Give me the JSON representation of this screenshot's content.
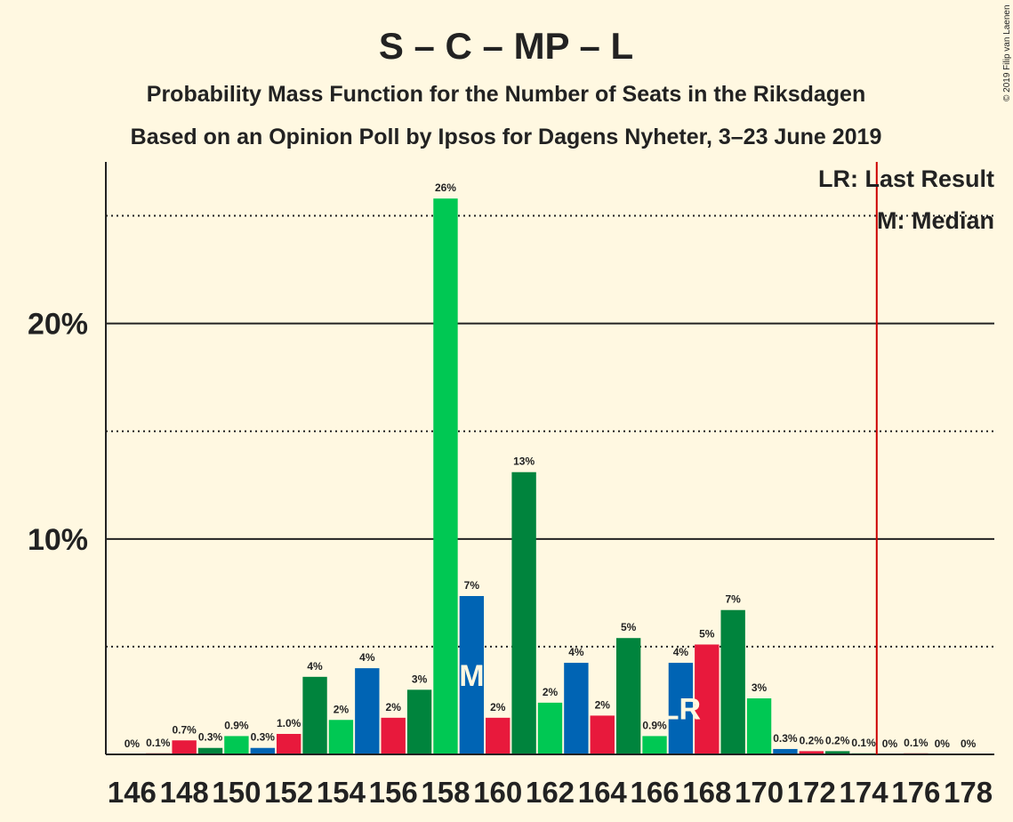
{
  "chart_data": {
    "type": "bar",
    "title": "S – C – MP – L",
    "subtitle_1": "Probability Mass Function for the Number of Seats in the Riksdagen",
    "subtitle_2": "Based on an Opinion Poll by Ipsos for Dagens Nyheter, 3–23 June 2019",
    "copyright": "© 2019 Filip van Laenen",
    "legend": {
      "last_result": "LR: Last Result",
      "median": "M: Median",
      "placement": "top-right"
    },
    "y_ticks": [
      {
        "value": 10,
        "label": "10%"
      },
      {
        "value": 20,
        "label": "20%"
      }
    ],
    "y_dotted_lines": [
      5,
      15,
      25
    ],
    "ylim": [
      0,
      27.5
    ],
    "xlim": [
      145,
      179
    ],
    "x_tick_labels": [
      "146",
      "148",
      "150",
      "152",
      "154",
      "156",
      "158",
      "160",
      "162",
      "164",
      "166",
      "168",
      "170",
      "172",
      "174",
      "176",
      "178"
    ],
    "majority_line_x": 175,
    "colors": {
      "red": "#e8193c",
      "dark_green": "#00843d",
      "green": "#00c853",
      "blue": "#0064b4",
      "majority": "#cc0000"
    },
    "bars": [
      {
        "seats": 146,
        "value": 0.0,
        "label": "0%",
        "color": "red"
      },
      {
        "seats": 147,
        "value": 0.05,
        "label": "0.1%",
        "color": "red"
      },
      {
        "seats": 148,
        "value": 0.65,
        "label": "0.7%",
        "color": "red"
      },
      {
        "seats": 149,
        "value": 0.3,
        "label": "0.3%",
        "color": "dark_green"
      },
      {
        "seats": 150,
        "value": 0.85,
        "label": "0.9%",
        "color": "green"
      },
      {
        "seats": 151,
        "value": 0.3,
        "label": "0.3%",
        "color": "blue"
      },
      {
        "seats": 152,
        "value": 0.95,
        "label": "1.0%",
        "color": "red"
      },
      {
        "seats": 153,
        "value": 3.6,
        "label": "4%",
        "color": "dark_green"
      },
      {
        "seats": 154,
        "value": 1.6,
        "label": "2%",
        "color": "green"
      },
      {
        "seats": 155,
        "value": 4.0,
        "label": "4%",
        "color": "blue"
      },
      {
        "seats": 156,
        "value": 1.7,
        "label": "2%",
        "color": "red"
      },
      {
        "seats": 157,
        "value": 3.0,
        "label": "3%",
        "color": "dark_green"
      },
      {
        "seats": 158,
        "value": 25.8,
        "label": "26%",
        "color": "green"
      },
      {
        "seats": 159,
        "value": 7.35,
        "label": "7%",
        "color": "blue",
        "marker": "M"
      },
      {
        "seats": 160,
        "value": 1.7,
        "label": "2%",
        "color": "red"
      },
      {
        "seats": 161,
        "value": 13.1,
        "label": "13%",
        "color": "dark_green"
      },
      {
        "seats": 162,
        "value": 2.4,
        "label": "2%",
        "color": "green"
      },
      {
        "seats": 163,
        "value": 4.25,
        "label": "4%",
        "color": "blue"
      },
      {
        "seats": 164,
        "value": 1.8,
        "label": "2%",
        "color": "red"
      },
      {
        "seats": 165,
        "value": 5.4,
        "label": "5%",
        "color": "dark_green"
      },
      {
        "seats": 166,
        "value": 0.85,
        "label": "0.9%",
        "color": "green"
      },
      {
        "seats": 167,
        "value": 4.25,
        "label": "4%",
        "color": "blue",
        "marker": "LR"
      },
      {
        "seats": 168,
        "value": 5.1,
        "label": "5%",
        "color": "red"
      },
      {
        "seats": 169,
        "value": 6.7,
        "label": "7%",
        "color": "dark_green"
      },
      {
        "seats": 170,
        "value": 2.6,
        "label": "3%",
        "color": "green"
      },
      {
        "seats": 171,
        "value": 0.25,
        "label": "0.3%",
        "color": "blue"
      },
      {
        "seats": 172,
        "value": 0.15,
        "label": "0.2%",
        "color": "red"
      },
      {
        "seats": 173,
        "value": 0.15,
        "label": "0.2%",
        "color": "dark_green"
      },
      {
        "seats": 174,
        "value": 0.05,
        "label": "0.1%",
        "color": "green"
      },
      {
        "seats": 175,
        "value": 0.0,
        "label": "0%",
        "color": "blue"
      },
      {
        "seats": 176,
        "value": 0.05,
        "label": "0.1%",
        "color": "red"
      },
      {
        "seats": 177,
        "value": 0.0,
        "label": "0%",
        "color": "dark_green"
      },
      {
        "seats": 178,
        "value": 0.0,
        "label": "0%",
        "color": "green"
      }
    ]
  }
}
